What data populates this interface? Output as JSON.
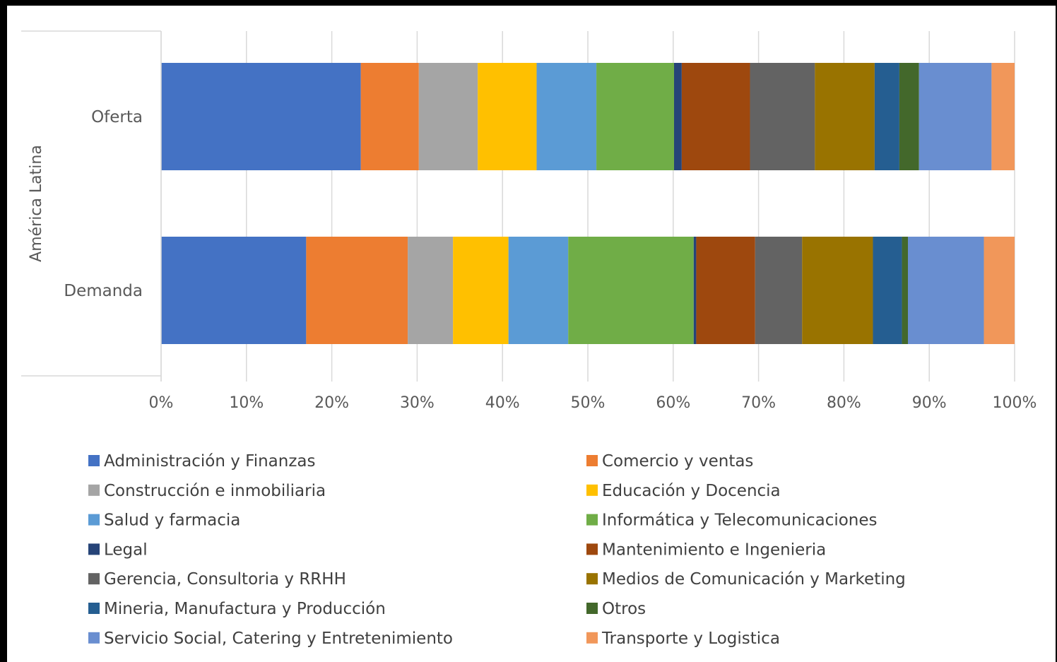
{
  "chart_data": {
    "type": "bar",
    "orientation": "horizontal",
    "stacked": "percent",
    "group_label": "América Latina",
    "categories": [
      "Oferta",
      "Demanda"
    ],
    "x_ticks": [
      "0%",
      "10%",
      "20%",
      "30%",
      "40%",
      "50%",
      "60%",
      "70%",
      "80%",
      "90%",
      "100%"
    ],
    "xlim": [
      0,
      100
    ],
    "grid": true,
    "legend_position": "bottom",
    "series": [
      {
        "name": "Administración y Finanzas",
        "color": "#4472C4",
        "values": [
          23.4,
          17.0
        ]
      },
      {
        "name": "Comercio y ventas",
        "color": "#ED7D31",
        "values": [
          6.8,
          11.9
        ]
      },
      {
        "name": "Construcción e inmobiliaria",
        "color": "#A5A5A5",
        "values": [
          6.9,
          5.3
        ]
      },
      {
        "name": "Educación y Docencia",
        "color": "#FFC000",
        "values": [
          6.9,
          6.5
        ]
      },
      {
        "name": "Salud y farmacia",
        "color": "#5B9BD5",
        "values": [
          7.0,
          7.0
        ]
      },
      {
        "name": "Informática y Telecomunicaciones",
        "color": "#70AD47",
        "values": [
          9.1,
          14.7
        ]
      },
      {
        "name": "Legal",
        "color": "#264478",
        "values": [
          0.9,
          0.3
        ]
      },
      {
        "name": "Mantenimiento e Ingenieria",
        "color": "#9E480E",
        "values": [
          8.0,
          6.9
        ]
      },
      {
        "name": "Gerencia, Consultoria y RRHH",
        "color": "#636363",
        "values": [
          7.6,
          5.5
        ]
      },
      {
        "name": "Medios de Comunicación y Marketing",
        "color": "#997300",
        "values": [
          7.0,
          8.3
        ]
      },
      {
        "name": "Mineria, Manufactura y Producción",
        "color": "#255E91",
        "values": [
          2.9,
          3.4
        ]
      },
      {
        "name": "Otros",
        "color": "#43682B",
        "values": [
          2.3,
          0.7
        ]
      },
      {
        "name": "Servicio Social, Catering y Entretenimiento",
        "color": "#698ED0",
        "values": [
          8.5,
          8.9
        ]
      },
      {
        "name": "Transporte y Logistica",
        "color": "#F1975A",
        "values": [
          2.7,
          3.6
        ]
      }
    ]
  }
}
